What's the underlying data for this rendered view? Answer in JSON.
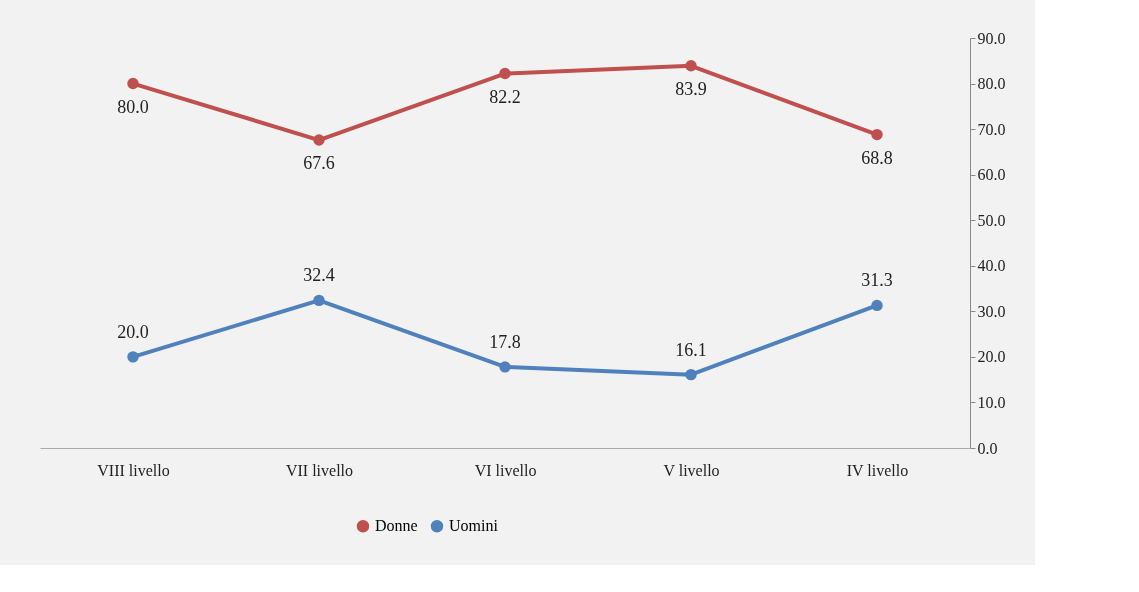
{
  "chart_data": {
    "type": "line",
    "categories": [
      "VIII livello",
      "VII  livello",
      "VI   livello",
      "V    livello",
      "IV   livello"
    ],
    "series": [
      {
        "name": "Donne",
        "color": "#c0504d",
        "values": [
          80.0,
          67.6,
          82.2,
          83.9,
          68.8
        ],
        "value_labels": [
          "80.0",
          "67.6",
          "82.2",
          "83.9",
          "68.8"
        ]
      },
      {
        "name": "Uomini",
        "color": "#4f81bd",
        "values": [
          20.0,
          32.4,
          17.8,
          16.1,
          31.3
        ],
        "value_labels": [
          "20.0",
          "32.4",
          "17.8",
          "16.1",
          "31.3"
        ]
      }
    ],
    "ylim": [
      0,
      90
    ],
    "yticks": [
      {
        "value": 0,
        "label": "0.0"
      },
      {
        "value": 10,
        "label": "10.0"
      },
      {
        "value": 20,
        "label": "20.0"
      },
      {
        "value": 30,
        "label": "30.0"
      },
      {
        "value": 40,
        "label": "40.0"
      },
      {
        "value": 50,
        "label": "50.0"
      },
      {
        "value": 60,
        "label": "60.0"
      },
      {
        "value": 70,
        "label": "70.0"
      },
      {
        "value": 80,
        "label": "80.0"
      },
      {
        "value": 90,
        "label": "90.0"
      }
    ],
    "grid": false,
    "legend": "bottom",
    "marker": "circle",
    "line_style": "solid"
  }
}
